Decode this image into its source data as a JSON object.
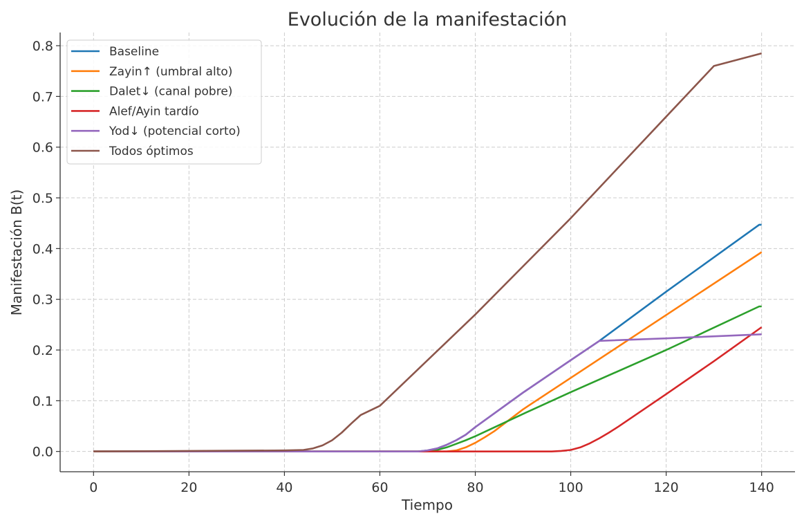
{
  "chart_data": {
    "type": "line",
    "title": "Evolución de la manifestación",
    "xlabel": "Tiempo",
    "ylabel": "Manifestación B(t)",
    "xlim": [
      -7,
      147
    ],
    "ylim": [
      -0.04,
      0.826
    ],
    "xticks": [
      0,
      20,
      40,
      60,
      80,
      100,
      120,
      140
    ],
    "xtick_labels": [
      "0",
      "20",
      "40",
      "60",
      "80",
      "100",
      "120",
      "140"
    ],
    "yticks": [
      0,
      0.1,
      0.2,
      0.3,
      0.4,
      0.5,
      0.6,
      0.7,
      0.8
    ],
    "ytick_labels": [
      "0.0",
      "0.1",
      "0.2",
      "0.3",
      "0.4",
      "0.5",
      "0.6",
      "0.7",
      "0.8"
    ],
    "grid": true,
    "legend_position": "top-left",
    "series": [
      {
        "name": "Baseline",
        "color": "#1f77b4",
        "x": [
          0,
          68,
          70,
          72,
          74,
          76,
          78,
          80,
          90,
          100,
          106,
          120,
          139.5,
          140
        ],
        "y": [
          0,
          0,
          0.002,
          0.006,
          0.013,
          0.022,
          0.033,
          0.048,
          0.116,
          0.18,
          0.218,
          0.315,
          0.447,
          0.447
        ]
      },
      {
        "name": "Zayin↑ (umbral alto)",
        "color": "#ff7f0e",
        "x": [
          0,
          74,
          76,
          78,
          80,
          82,
          84,
          90,
          100,
          120,
          140
        ],
        "y": [
          0,
          0,
          0.002,
          0.008,
          0.017,
          0.028,
          0.04,
          0.083,
          0.145,
          0.269,
          0.393
        ]
      },
      {
        "name": "Dalet↓ (canal pobre)",
        "color": "#2ca02c",
        "x": [
          0,
          70,
          72,
          74,
          76,
          78,
          80,
          90,
          100,
          120,
          139.5,
          140
        ],
        "y": [
          0,
          0,
          0.003,
          0.008,
          0.015,
          0.022,
          0.03,
          0.074,
          0.117,
          0.2,
          0.286,
          0.286
        ]
      },
      {
        "name": "Alef/Ayin tardío",
        "color": "#d62728",
        "x": [
          0,
          96,
          98,
          100,
          102,
          104,
          106,
          108,
          110,
          120,
          130,
          140
        ],
        "y": [
          0,
          0,
          0.001,
          0.003,
          0.008,
          0.016,
          0.026,
          0.037,
          0.049,
          0.113,
          0.178,
          0.245
        ]
      },
      {
        "name": "Yod↓ (potencial corto)",
        "color": "#9467bd",
        "x": [
          0,
          68,
          70,
          72,
          74,
          76,
          78,
          80,
          90,
          100,
          106,
          120,
          140
        ],
        "y": [
          0,
          0,
          0.002,
          0.006,
          0.013,
          0.022,
          0.033,
          0.048,
          0.116,
          0.18,
          0.218,
          0.223,
          0.231
        ]
      },
      {
        "name": "Todos óptimos",
        "color": "#8c564b",
        "x": [
          0,
          40,
          44,
          46,
          48,
          50,
          52,
          54,
          56,
          60,
          70,
          80,
          90,
          100,
          110,
          120,
          130,
          140
        ],
        "y": [
          0,
          0.002,
          0.003,
          0.006,
          0.012,
          0.022,
          0.037,
          0.055,
          0.072,
          0.09,
          0.18,
          0.27,
          0.365,
          0.46,
          0.56,
          0.66,
          0.76,
          0.785
        ]
      }
    ]
  }
}
